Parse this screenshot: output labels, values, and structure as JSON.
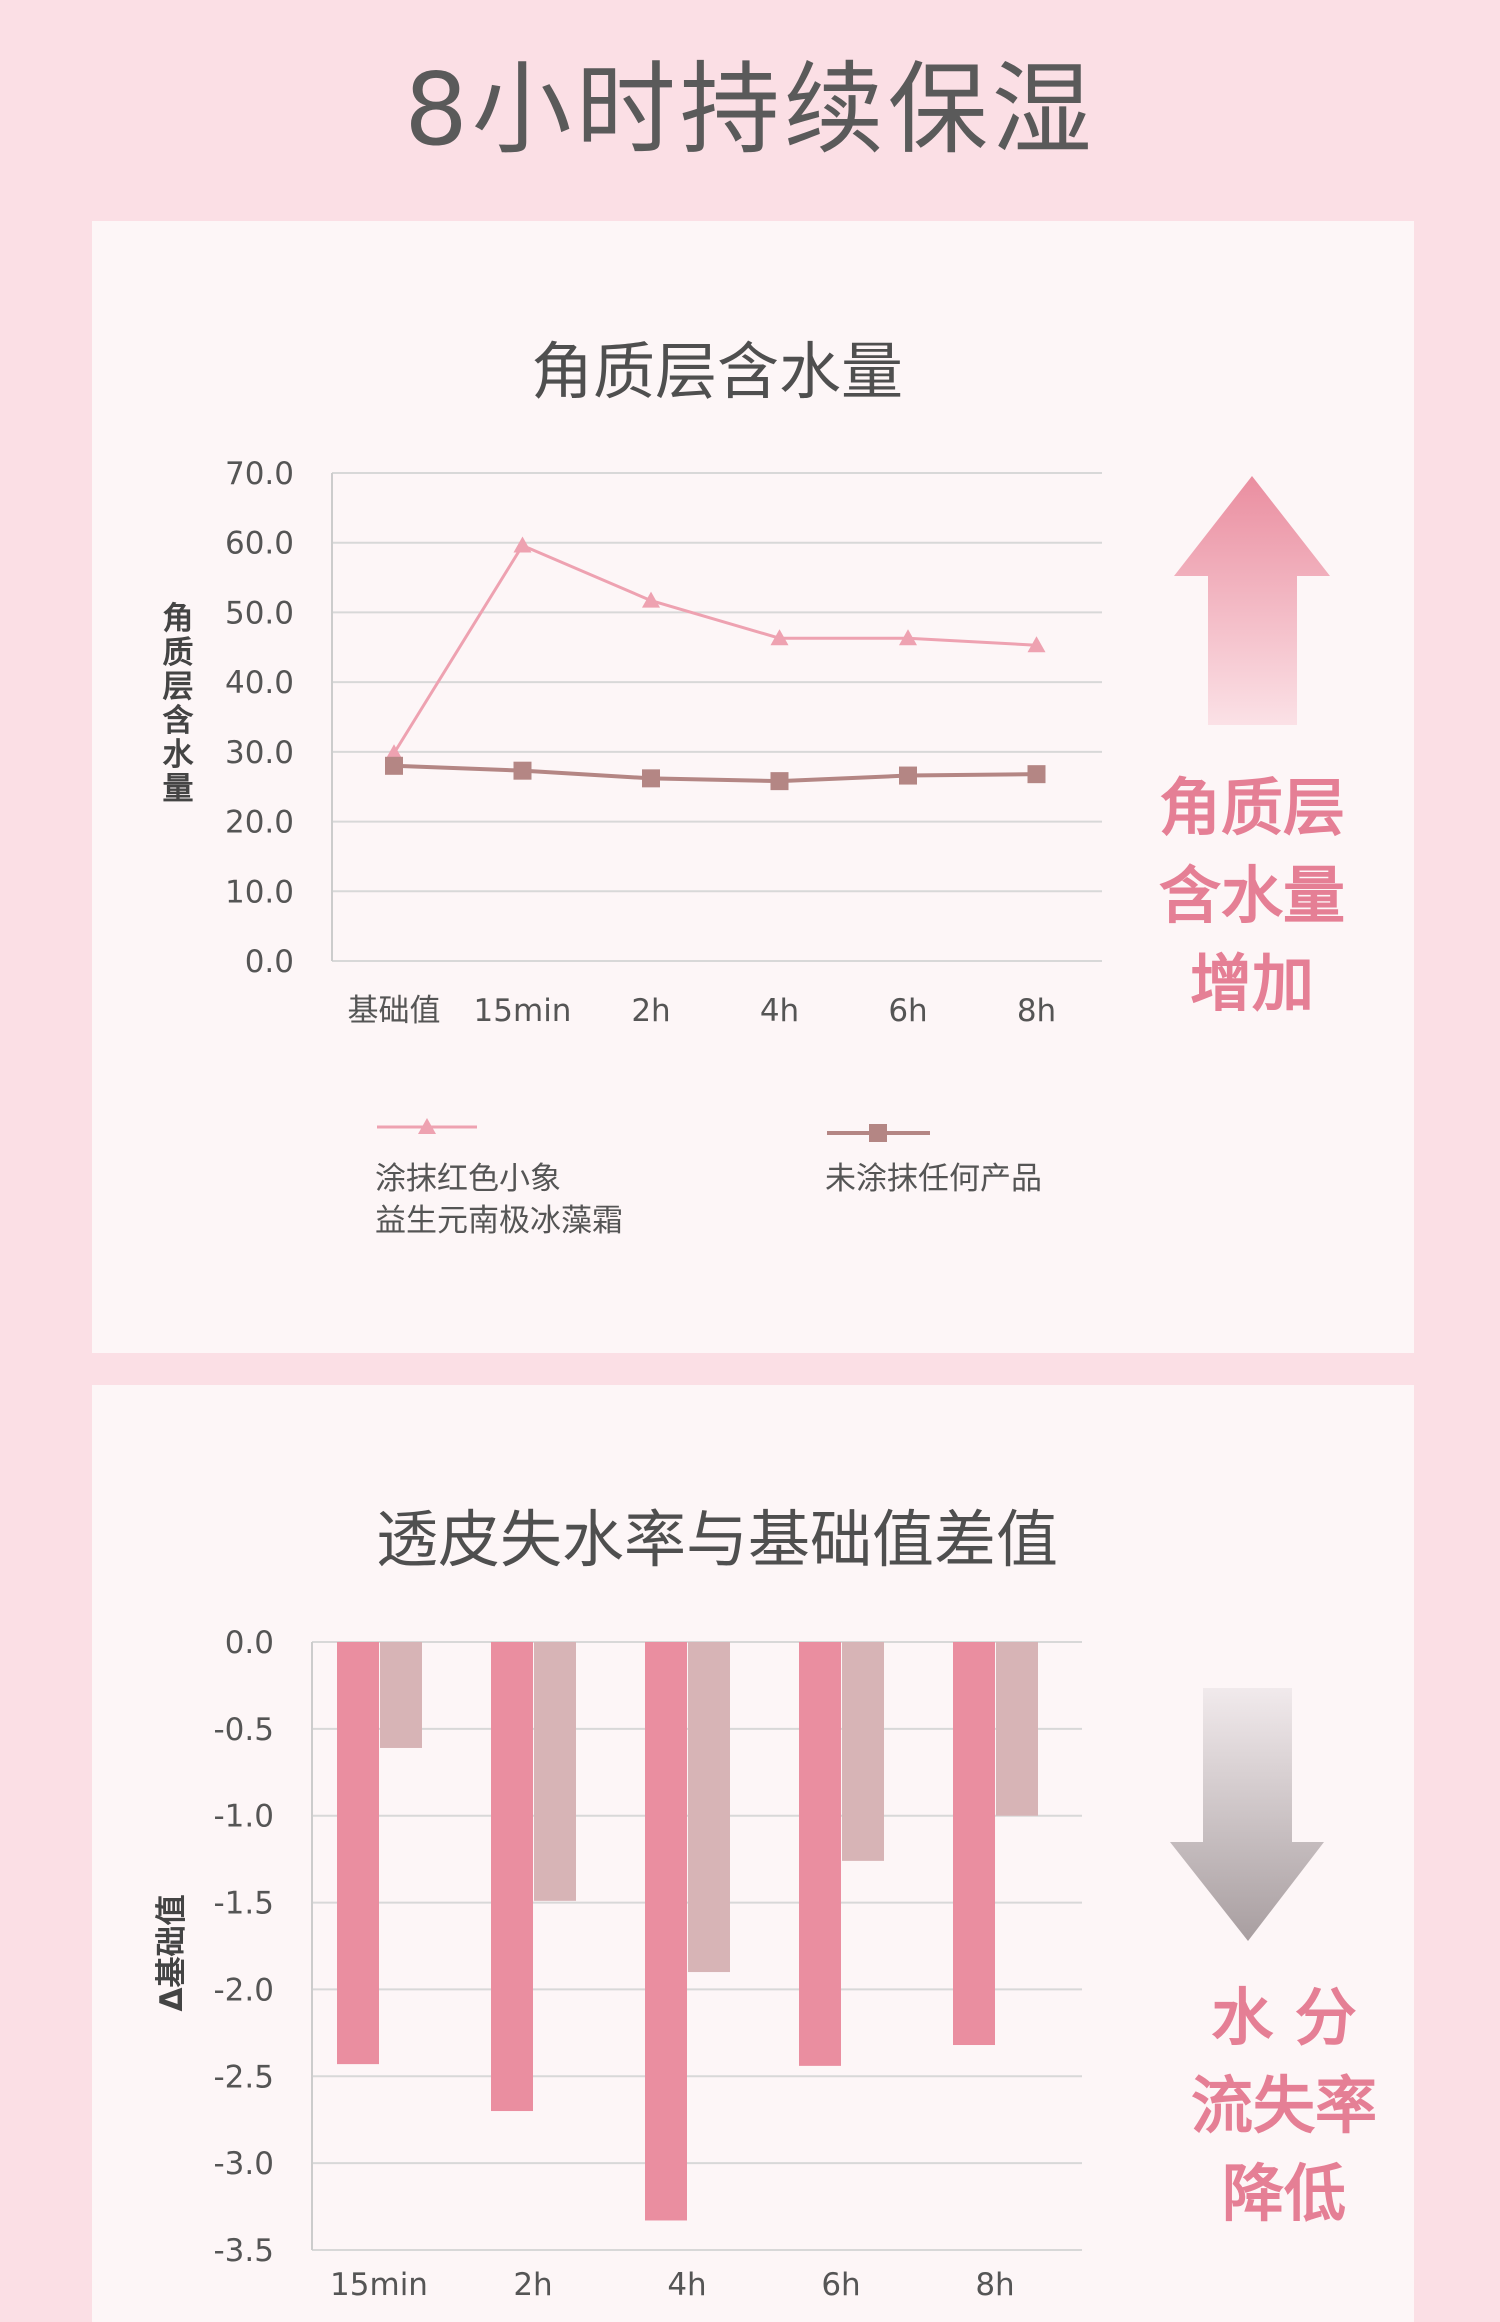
{
  "page": {
    "title": "8小时持续保湿"
  },
  "chart_data": [
    {
      "type": "line",
      "title": "角质层含水量",
      "ylabel": "角质层含水量",
      "xlabel": "",
      "categories": [
        "基础值",
        "15min",
        "2h",
        "4h",
        "6h",
        "8h"
      ],
      "ylim": [
        0,
        70
      ],
      "yticks": [
        "70.0",
        "60.0",
        "50.0",
        "40.0",
        "30.0",
        "20.0",
        "10.0",
        "0.0"
      ],
      "grid": true,
      "series": [
        {
          "name": "涂抹红色小象益生元南极冰藻霜",
          "name_lines": [
            "涂抹红色小象",
            "益生元南极冰藻霜"
          ],
          "marker": "triangle",
          "color": "#eea2b1",
          "values": [
            29.8,
            59.6,
            51.7,
            46.3,
            46.3,
            45.3
          ]
        },
        {
          "name": "未涂抹任何产品",
          "name_lines": [
            "未涂抹任何产品"
          ],
          "marker": "square",
          "color": "#b48684",
          "values": [
            28.0,
            27.3,
            26.2,
            25.8,
            26.6,
            26.8
          ]
        }
      ],
      "side_label": [
        "角质层",
        "含水量",
        "增加"
      ],
      "side_arrow": "up-arrow",
      "colors": {
        "accent": "#ea8ea0",
        "arrow_light": "#fbe1e6"
      }
    },
    {
      "type": "bar",
      "title": "透皮失水率与基础值差值",
      "ylabel": "Δ基础值",
      "xlabel": "",
      "categories": [
        "15min",
        "2h",
        "4h",
        "6h",
        "8h"
      ],
      "ylim": [
        -3.5,
        0
      ],
      "yticks": [
        "0.0",
        "-0.5",
        "-1.0",
        "-1.5",
        "-2.0",
        "-2.5",
        "-3.0",
        "-3.5"
      ],
      "grid": true,
      "series": [
        {
          "color": "#ea8ea0",
          "values": [
            -2.43,
            -2.7,
            -3.33,
            -2.44,
            -2.32
          ]
        },
        {
          "color": "#d7b4b6",
          "values": [
            -0.61,
            -1.49,
            -1.9,
            -1.26,
            -1.0
          ]
        }
      ],
      "side_label": [
        "水 分",
        "流失率",
        "降低"
      ],
      "side_arrow": "down-arrow",
      "colors": {
        "arrow_dark": "#a89ea0",
        "arrow_light": "#f1eaec"
      }
    }
  ]
}
